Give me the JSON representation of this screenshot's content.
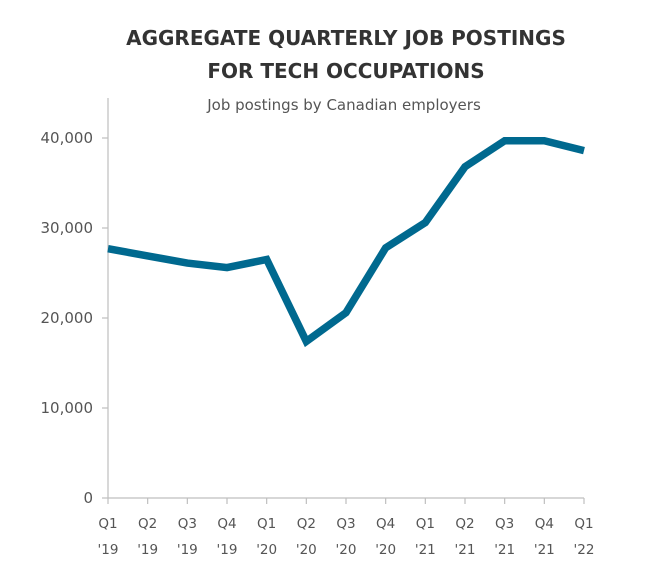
{
  "chart_data": {
    "type": "line",
    "title": [
      "AGGREGATE QUARTERLY JOB POSTINGS",
      "FOR TECH OCCUPATIONS"
    ],
    "subtitle": "Job postings by Canadian employers",
    "xlabel": "",
    "ylabel": "",
    "categories": [
      {
        "quarter": "Q1",
        "year": "'19"
      },
      {
        "quarter": "Q2",
        "year": "'19"
      },
      {
        "quarter": "Q3",
        "year": "'19"
      },
      {
        "quarter": "Q4",
        "year": "'19"
      },
      {
        "quarter": "Q1",
        "year": "'20"
      },
      {
        "quarter": "Q2",
        "year": "'20"
      },
      {
        "quarter": "Q3",
        "year": "'20"
      },
      {
        "quarter": "Q4",
        "year": "'20"
      },
      {
        "quarter": "Q1",
        "year": "'21"
      },
      {
        "quarter": "Q2",
        "year": "'21"
      },
      {
        "quarter": "Q3",
        "year": "'21"
      },
      {
        "quarter": "Q4",
        "year": "'21"
      },
      {
        "quarter": "Q1",
        "year": "'22"
      }
    ],
    "series": [
      {
        "values": [
          27700,
          26900,
          26100,
          25600,
          26500,
          17400,
          20600,
          27800,
          30600,
          36800,
          39700,
          39700,
          38600
        ],
        "color": "#00698f"
      }
    ],
    "ylim": [
      0,
      40000
    ],
    "y_ticks": [
      {
        "value": 0,
        "label": "0"
      },
      {
        "value": 10000,
        "label": "10,000"
      },
      {
        "value": 20000,
        "label": "20,000"
      },
      {
        "value": 30000,
        "label": "30,000"
      },
      {
        "value": 40000,
        "label": "40,000"
      }
    ],
    "grid": false,
    "legend": "none",
    "axis_color": "#bfbfbf"
  }
}
